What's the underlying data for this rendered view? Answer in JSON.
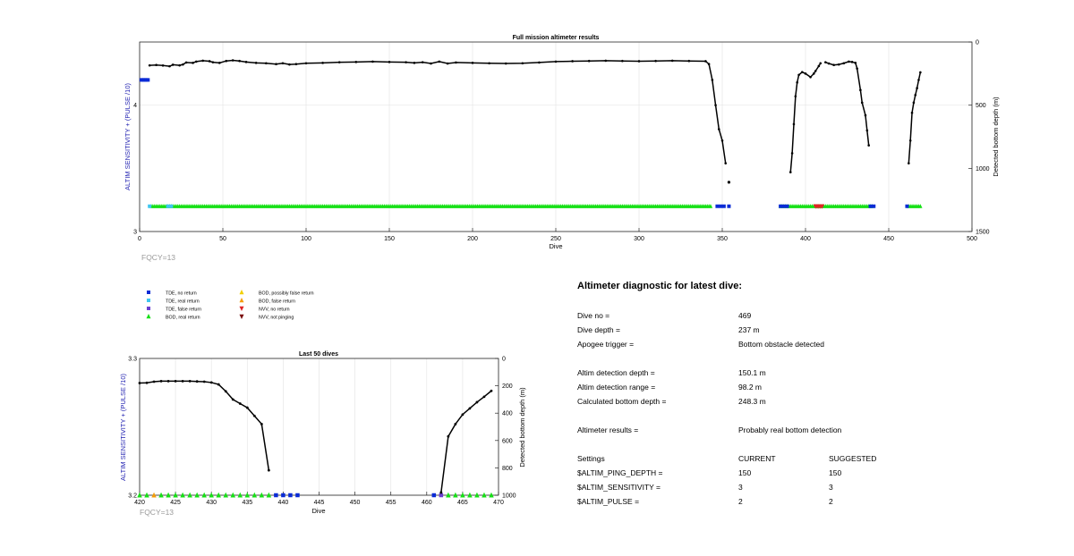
{
  "chart_data": [
    {
      "type": "scatter",
      "title": "Full mission altimeter results",
      "xlabel": "Dive",
      "ylabel": "ALTIM SENSITIVITY + (PULSE /10)",
      "ylabel_right": "Detected bottom depth (m)",
      "xlim": [
        0,
        500
      ],
      "ylim": [
        3,
        4.5
      ],
      "ylim_right": [
        1500,
        0
      ],
      "x_ticks": [
        "0",
        "50",
        "100",
        "150",
        "200",
        "250",
        "300",
        "350",
        "400",
        "450",
        "500"
      ],
      "y_ticks": [
        "3",
        "4"
      ],
      "y_right_ticks": [
        "0",
        "500",
        "1000",
        "1500"
      ],
      "grid": true,
      "annotation": "FQCY=13",
      "depth_segments": [
        [
          [
            6,
            185
          ],
          [
            10,
            182
          ],
          [
            14,
            186
          ],
          [
            18,
            192
          ],
          [
            20,
            180
          ],
          [
            24,
            185
          ],
          [
            26,
            178
          ],
          [
            28,
            162
          ],
          [
            32,
            165
          ],
          [
            34,
            155
          ],
          [
            38,
            148
          ],
          [
            42,
            152
          ],
          [
            44,
            160
          ],
          [
            48,
            165
          ],
          [
            52,
            150
          ],
          [
            56,
            145
          ],
          [
            60,
            150
          ],
          [
            64,
            158
          ],
          [
            70,
            165
          ],
          [
            76,
            168
          ],
          [
            82,
            175
          ],
          [
            86,
            168
          ],
          [
            90,
            178
          ],
          [
            94,
            175
          ],
          [
            100,
            168
          ],
          [
            110,
            165
          ],
          [
            120,
            160
          ],
          [
            130,
            158
          ],
          [
            140,
            155
          ],
          [
            150,
            158
          ],
          [
            160,
            160
          ],
          [
            165,
            165
          ],
          [
            170,
            160
          ],
          [
            175,
            170
          ],
          [
            180,
            155
          ],
          [
            185,
            170
          ],
          [
            190,
            162
          ],
          [
            200,
            165
          ],
          [
            210,
            168
          ],
          [
            220,
            170
          ],
          [
            230,
            168
          ],
          [
            240,
            162
          ],
          [
            250,
            155
          ],
          [
            260,
            152
          ],
          [
            270,
            150
          ],
          [
            280,
            148
          ],
          [
            290,
            150
          ],
          [
            300,
            152
          ],
          [
            310,
            150
          ],
          [
            320,
            148
          ],
          [
            330,
            150
          ],
          [
            340,
            152
          ],
          [
            342,
            175
          ],
          [
            344,
            300
          ],
          [
            346,
            500
          ],
          [
            348,
            690
          ],
          [
            350,
            780
          ],
          [
            352,
            960
          ]
        ],
        [
          [
            391,
            1030
          ],
          [
            392,
            880
          ],
          [
            393,
            650
          ],
          [
            394,
            430
          ],
          [
            395,
            320
          ],
          [
            396,
            260
          ],
          [
            398,
            238
          ],
          [
            400,
            250
          ],
          [
            403,
            278
          ],
          [
            405,
            250
          ],
          [
            406,
            230
          ],
          [
            408,
            190
          ],
          [
            409,
            168
          ]
        ],
        [
          [
            412,
            160
          ],
          [
            414,
            170
          ],
          [
            417,
            182
          ],
          [
            420,
            178
          ],
          [
            423,
            168
          ],
          [
            426,
            155
          ],
          [
            428,
            158
          ],
          [
            430,
            165
          ],
          [
            431,
            210
          ],
          [
            433,
            380
          ],
          [
            434,
            480
          ],
          [
            436,
            580
          ],
          [
            437,
            700
          ],
          [
            438,
            818
          ]
        ],
        [
          [
            462,
            960
          ],
          [
            463,
            780
          ],
          [
            464,
            560
          ],
          [
            465,
            480
          ],
          [
            466,
            420
          ],
          [
            467,
            365
          ],
          [
            468,
            300
          ],
          [
            469,
            240
          ]
        ]
      ],
      "isolated_depths": [
        [
          354,
          1110
        ]
      ],
      "tde_no_return": [
        [
          1,
          4.2
        ],
        [
          2,
          4.2
        ],
        [
          3,
          4.2
        ],
        [
          4,
          4.2
        ],
        [
          5,
          4.2
        ],
        [
          347,
          3.2
        ],
        [
          349,
          3.2
        ],
        [
          351,
          3.2
        ],
        [
          354,
          3.2
        ],
        [
          385,
          3.2
        ],
        [
          387,
          3.2
        ],
        [
          389,
          3.2
        ],
        [
          439,
          3.2
        ],
        [
          441,
          3.2
        ],
        [
          461,
          3.2
        ]
      ],
      "tde_real_return": [
        [
          6,
          3.2
        ],
        [
          17,
          3.2
        ],
        [
          19,
          3.2
        ]
      ],
      "bod_real_return_ranges": [
        [
          7,
          343
        ],
        [
          385,
          440
        ],
        [
          462,
          469
        ]
      ],
      "nvv_no_return": [
        [
          406,
          3.2
        ],
        [
          407,
          3.2
        ],
        [
          408,
          3.2
        ],
        [
          409,
          3.2
        ],
        [
          410,
          3.2
        ]
      ]
    },
    {
      "type": "scatter",
      "title": "Last 50 dives",
      "xlabel": "Dive",
      "ylabel": "ALTIM SENSITIVITY + (PULSE /10)",
      "ylabel_right": "Detected bottom depth (m)",
      "xlim": [
        420,
        470
      ],
      "ylim": [
        3.2,
        3.3
      ],
      "ylim_right": [
        1000,
        0
      ],
      "x_ticks": [
        "420",
        "425",
        "430",
        "435",
        "440",
        "445",
        "450",
        "455",
        "460",
        "465",
        "470"
      ],
      "y_ticks": [
        "3.2",
        "3.3"
      ],
      "y_right_ticks": [
        "0",
        "200",
        "400",
        "600",
        "800",
        "1000"
      ],
      "grid": true,
      "annotation": "FQCY=13",
      "depth_segments": [
        [
          [
            420,
            180
          ],
          [
            421,
            178
          ],
          [
            422,
            170
          ],
          [
            423,
            166
          ],
          [
            424,
            166
          ],
          [
            425,
            166
          ],
          [
            426,
            166
          ],
          [
            427,
            166
          ],
          [
            428,
            168
          ],
          [
            429,
            170
          ],
          [
            430,
            176
          ],
          [
            431,
            190
          ],
          [
            432,
            240
          ],
          [
            433,
            300
          ],
          [
            434,
            330
          ],
          [
            435,
            360
          ],
          [
            436,
            420
          ],
          [
            437,
            480
          ],
          [
            438,
            818
          ]
        ],
        [
          [
            462,
            980
          ],
          [
            463,
            570
          ],
          [
            464,
            480
          ],
          [
            465,
            410
          ],
          [
            466,
            365
          ],
          [
            467,
            320
          ],
          [
            468,
            280
          ],
          [
            469,
            237
          ]
        ]
      ],
      "bod_real_return": [
        420,
        421,
        423,
        424,
        425,
        426,
        427,
        428,
        429,
        430,
        431,
        432,
        433,
        434,
        435,
        436,
        437,
        438,
        463,
        464,
        465,
        466,
        467,
        468,
        469
      ],
      "bod_false_return": [
        422
      ],
      "tde_no_return": [
        439,
        440,
        441,
        442,
        461
      ],
      "tde_false_return": [
        462
      ],
      "marker_y": 3.2
    }
  ],
  "legend": [
    {
      "label": "TDE, no return",
      "color": "#0a2bd6",
      "shape": "square"
    },
    {
      "label": "TDE, real return",
      "color": "#3ec6f0",
      "shape": "square"
    },
    {
      "label": "TDE, false return",
      "color": "#6a3fd0",
      "shape": "square"
    },
    {
      "label": "BOD, real return",
      "color": "#16e016",
      "shape": "triangle-up"
    },
    {
      "label": "BOD, possibly false return",
      "color": "#f2d000",
      "shape": "triangle-up"
    },
    {
      "label": "BOD, false return",
      "color": "#f59e0b",
      "shape": "triangle-up"
    },
    {
      "label": "NVV, no return",
      "color": "#e02424",
      "shape": "triangle-down"
    },
    {
      "label": "NVV, not pinging",
      "color": "#7a0c0c",
      "shape": "triangle-down"
    }
  ],
  "diagnostic": {
    "title": "Altimeter diagnostic for latest dive:",
    "rows": [
      {
        "label": "Dive no =",
        "value": "469"
      },
      {
        "label": "Dive depth =",
        "value": "237 m"
      },
      {
        "label": "Apogee trigger =",
        "value": "Bottom obstacle detected"
      },
      {
        "label": "Altim detection depth =",
        "value": "150.1 m"
      },
      {
        "label": "Altim detection range =",
        "value": "98.2 m"
      },
      {
        "label": "Calculated bottom depth =",
        "value": "248.3 m"
      },
      {
        "label": "Altimeter results =",
        "value": "Probably real bottom detection"
      }
    ],
    "settings_header": {
      "label": "Settings",
      "current": "CURRENT",
      "suggested": "SUGGESTED"
    },
    "settings": [
      {
        "label": "$ALTIM_PING_DEPTH =",
        "current": "150",
        "suggested": "150"
      },
      {
        "label": "$ALTIM_SENSITIVITY =",
        "current": "3",
        "suggested": "3"
      },
      {
        "label": "$ALTIM_PULSE =",
        "current": "2",
        "suggested": "2"
      }
    ]
  },
  "colors": {
    "depth_line": "#000000",
    "grid": "#e6e6e6",
    "axis_label_left": "#1f1fb0",
    "annotation": "#9a9a9a"
  }
}
